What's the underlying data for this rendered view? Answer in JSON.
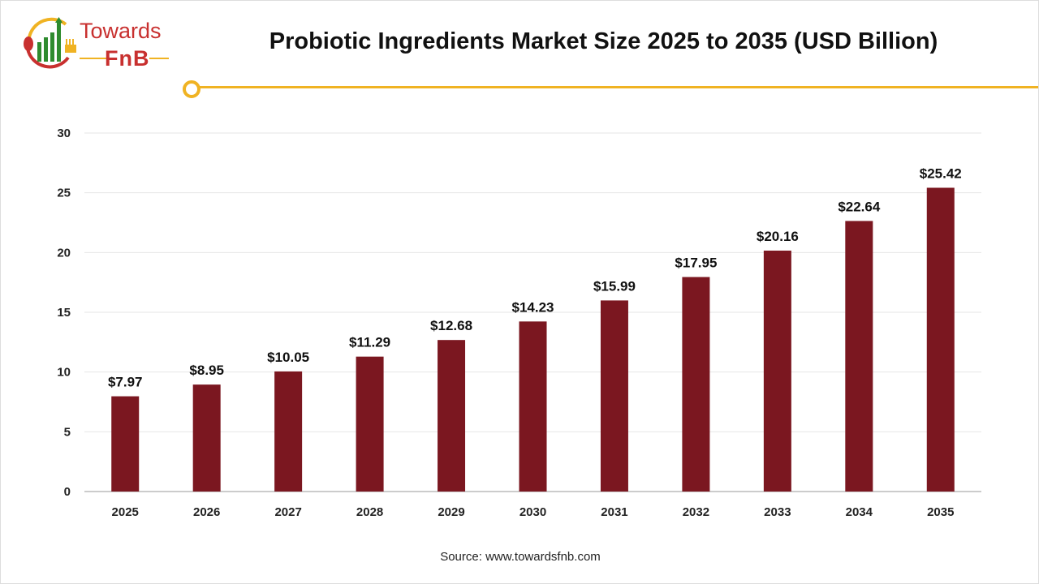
{
  "logo": {
    "line1": "Towards",
    "line2": "FnB"
  },
  "source": "Source: www.towardsfnb.com",
  "colors": {
    "bar": "#7b1720",
    "accent": "#f0b323",
    "grid": "#e6e6e6"
  },
  "chart_data": {
    "type": "bar",
    "title": "Probiotic Ingredients Market Size 2025 to 2035 (USD Billion)",
    "categories": [
      "2025",
      "2026",
      "2027",
      "2028",
      "2029",
      "2030",
      "2031",
      "2032",
      "2033",
      "2034",
      "2035"
    ],
    "values": [
      7.97,
      8.95,
      10.05,
      11.29,
      12.68,
      14.23,
      15.99,
      17.95,
      20.16,
      22.64,
      25.42
    ],
    "data_labels": [
      "$7.97",
      "$8.95",
      "$10.05",
      "$11.29",
      "$12.68",
      "$14.23",
      "$15.99",
      "$17.95",
      "$20.16",
      "$22.64",
      "$25.42"
    ],
    "ylim": [
      0,
      30
    ],
    "yticks": [
      0,
      5,
      10,
      15,
      20,
      25,
      30
    ],
    "xlabel": "",
    "ylabel": "",
    "grid": true,
    "legend": "none"
  }
}
